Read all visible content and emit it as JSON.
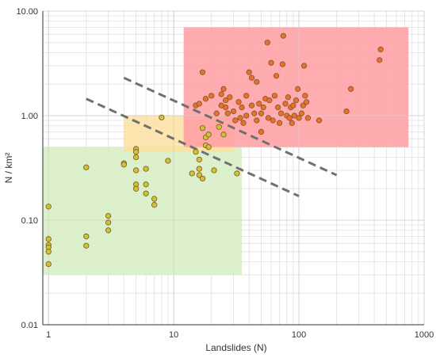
{
  "chart_data": {
    "type": "scatter",
    "xlabel": "Landslides (N)",
    "ylabel": "N / km²",
    "x_scale": "log",
    "y_scale": "log",
    "xlim": [
      0.9,
      1000
    ],
    "ylim": [
      0.01,
      10
    ],
    "x_ticks": [
      "1",
      "10",
      "100",
      "1000"
    ],
    "y_ticks": [
      "0.01",
      "0.10",
      "1.00",
      "10.00"
    ],
    "grid": true,
    "zones": [
      {
        "color": "#d6eec2",
        "x": [
          0.9,
          35
        ],
        "y": [
          0.03,
          0.5
        ]
      },
      {
        "color": "#fde1a1",
        "x": [
          4,
          30
        ],
        "y": [
          0.45,
          1.0
        ]
      },
      {
        "color": "#ff9ea3",
        "x": [
          12,
          750
        ],
        "y": [
          0.5,
          7.0
        ]
      }
    ],
    "trend_lines": [
      {
        "color": "#707070",
        "x": [
          2,
          100
        ],
        "y": [
          1.45,
          0.17
        ]
      },
      {
        "color": "#707070",
        "x": [
          4,
          200
        ],
        "y": [
          2.3,
          0.27
        ]
      }
    ],
    "series": [
      {
        "color": "#c8c832",
        "points": [
          [
            1,
            0.135
          ],
          [
            1,
            0.066
          ],
          [
            1,
            0.058
          ],
          [
            1,
            0.055
          ],
          [
            1,
            0.05
          ],
          [
            1,
            0.038
          ],
          [
            2,
            0.32
          ],
          [
            2,
            0.07
          ],
          [
            2,
            0.057
          ],
          [
            3,
            0.11
          ],
          [
            3,
            0.095
          ],
          [
            3,
            0.08
          ],
          [
            4,
            0.35
          ],
          [
            4,
            0.34
          ],
          [
            5,
            0.48
          ],
          [
            5,
            0.45
          ],
          [
            5,
            0.4
          ],
          [
            5,
            0.3
          ],
          [
            5,
            0.22
          ],
          [
            5,
            0.2
          ],
          [
            6,
            0.31
          ],
          [
            6,
            0.22
          ],
          [
            6,
            0.18
          ],
          [
            7,
            0.16
          ],
          [
            7,
            0.14
          ],
          [
            8,
            0.96
          ],
          [
            9,
            0.37
          ],
          [
            14,
            0.28
          ],
          [
            15,
            0.45
          ],
          [
            16,
            0.38
          ],
          [
            16,
            0.27
          ],
          [
            16,
            0.31
          ],
          [
            17,
            0.25
          ],
          [
            17,
            0.76
          ],
          [
            18,
            0.62
          ],
          [
            18,
            0.52
          ],
          [
            19,
            0.5
          ],
          [
            19,
            0.66
          ],
          [
            21,
            0.3
          ],
          [
            23,
            0.78
          ],
          [
            25,
            0.66
          ],
          [
            32,
            0.28
          ]
        ]
      },
      {
        "color": "#e8702c",
        "points": [
          [
            17,
            2.6
          ],
          [
            15,
            1.25
          ],
          [
            16,
            1.3
          ],
          [
            18,
            1.45
          ],
          [
            20,
            1.55
          ],
          [
            22,
            1.05
          ],
          [
            24,
            1.25
          ],
          [
            24,
            1.6
          ],
          [
            25,
            1.8
          ],
          [
            26,
            1.4
          ],
          [
            26,
            1.2
          ],
          [
            27,
            1.05
          ],
          [
            28,
            1.5
          ],
          [
            30,
            1.1
          ],
          [
            31,
            0.9
          ],
          [
            33,
            1.35
          ],
          [
            34,
            0.95
          ],
          [
            35,
            1.2
          ],
          [
            36,
            0.85
          ],
          [
            38,
            1.0
          ],
          [
            38,
            1.55
          ],
          [
            40,
            2.6
          ],
          [
            42,
            1.25
          ],
          [
            42,
            2.3
          ],
          [
            44,
            1.05
          ],
          [
            46,
            0.9
          ],
          [
            46,
            2.1
          ],
          [
            48,
            1.3
          ],
          [
            50,
            1.05
          ],
          [
            50,
            0.7
          ],
          [
            52,
            1.2
          ],
          [
            54,
            1.45
          ],
          [
            56,
            5.0
          ],
          [
            57,
            0.95
          ],
          [
            58,
            1.4
          ],
          [
            60,
            3.2
          ],
          [
            62,
            0.9
          ],
          [
            64,
            1.55
          ],
          [
            66,
            2.4
          ],
          [
            68,
            1.2
          ],
          [
            70,
            0.85
          ],
          [
            72,
            1.05
          ],
          [
            74,
            3.1
          ],
          [
            75,
            5.8
          ],
          [
            78,
            1.3
          ],
          [
            80,
            1.0
          ],
          [
            82,
            1.5
          ],
          [
            84,
            0.95
          ],
          [
            86,
            1.2
          ],
          [
            88,
            0.85
          ],
          [
            90,
            1.25
          ],
          [
            92,
            1.0
          ],
          [
            95,
            1.4
          ],
          [
            98,
            1.8
          ],
          [
            100,
            0.95
          ],
          [
            105,
            1.05
          ],
          [
            108,
            1.25
          ],
          [
            110,
            3.0
          ],
          [
            112,
            1.55
          ],
          [
            115,
            1.35
          ],
          [
            118,
            0.95
          ],
          [
            145,
            0.9
          ],
          [
            240,
            1.1
          ],
          [
            260,
            1.8
          ],
          [
            440,
            3.4
          ],
          [
            450,
            4.3
          ]
        ]
      }
    ]
  }
}
